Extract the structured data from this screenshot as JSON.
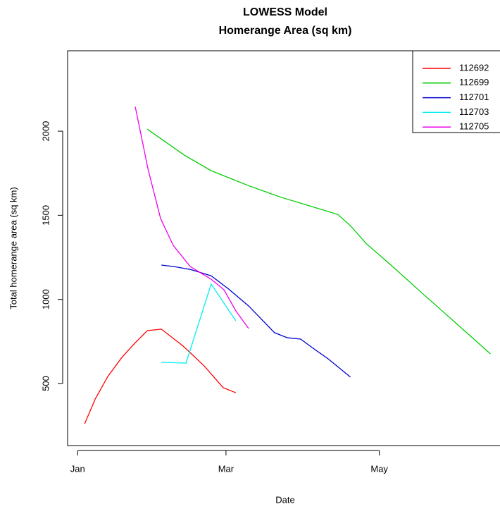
{
  "chart_data": {
    "type": "line",
    "title": "LOWESS Model",
    "subtitle": "Homerange Area (sq km)",
    "x_label": "Date",
    "y_label": "Total homerange area (sq km)",
    "xlim": [
      -4,
      168
    ],
    "xticks": [
      {
        "value": 0,
        "label": "Jan"
      },
      {
        "value": 59,
        "label": "Mar"
      },
      {
        "value": 120,
        "label": "May"
      }
    ],
    "ylim": [
      131,
      2478
    ],
    "yticks": [
      500,
      1000,
      1500,
      2000
    ],
    "legend": "top-right",
    "series": [
      {
        "name": "112692",
        "color": "#ff0000",
        "x": [
          2.8,
          7.0,
          12.0,
          17.6,
          22.7,
          27.7,
          33.3,
          42.0,
          50.3,
          57.9,
          62.9
        ],
        "values": [
          261,
          408,
          542,
          655,
          739,
          814,
          823,
          722,
          605,
          475,
          445
        ]
      },
      {
        "name": "112699",
        "color": "#00cd00",
        "x": [
          27.7,
          42.5,
          53.1,
          68.5,
          81.1,
          95.1,
          103.5,
          108.5,
          114.7,
          125.9,
          137.1,
          151.0,
          164.2
        ],
        "values": [
          2012,
          1857,
          1765,
          1673,
          1606,
          1543,
          1505,
          1438,
          1333,
          1187,
          1036,
          852,
          676
        ]
      },
      {
        "name": "112701",
        "color": "#0000cd",
        "x": [
          33.3,
          38.3,
          44.8,
          53.1,
          60.1,
          68.0,
          78.3,
          83.4,
          88.7,
          93.7,
          99.6,
          108.5
        ],
        "values": [
          1204,
          1195,
          1178,
          1140,
          1061,
          961,
          802,
          772,
          764,
          709,
          647,
          538
        ]
      },
      {
        "name": "112703",
        "color": "#00eeee",
        "x": [
          33.3,
          43.1,
          53.1,
          62.9
        ],
        "values": [
          626,
          621,
          1091,
          873
        ]
      },
      {
        "name": "112705",
        "color": "#ee00ee",
        "x": [
          22.9,
          28.0,
          33.0,
          38.0,
          44.8,
          53.1,
          58.2,
          62.9,
          68.0
        ],
        "values": [
          2146,
          1774,
          1480,
          1321,
          1195,
          1120,
          1057,
          932,
          827
        ]
      }
    ]
  }
}
